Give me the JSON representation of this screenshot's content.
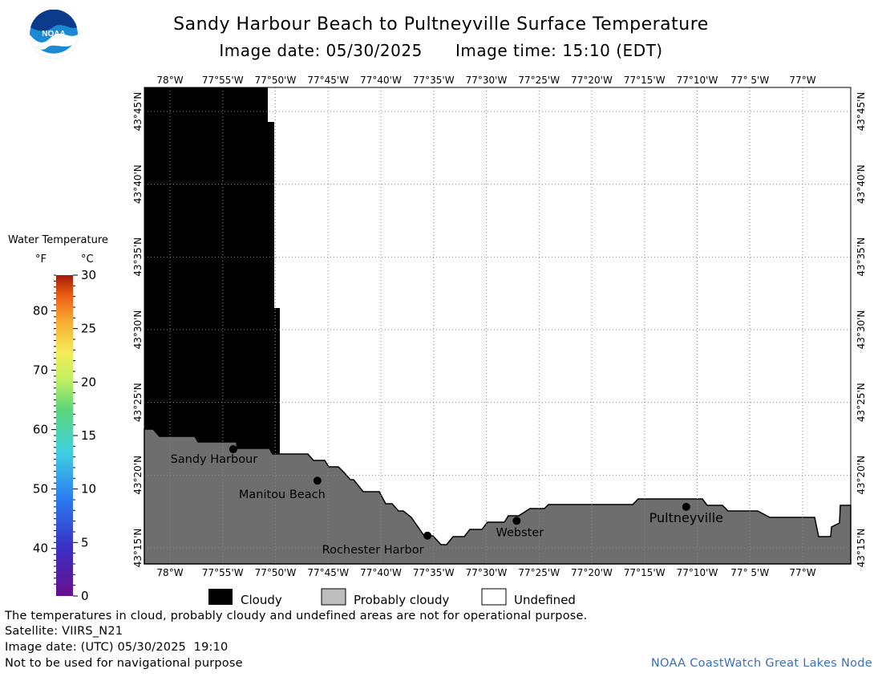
{
  "header": {
    "title": "Sandy Harbour Beach to Pultneyville Surface Temperature",
    "image_date_label": "Image date: 05/30/2025",
    "image_time_label": "Image time: 15:10 (EDT)"
  },
  "logo": {
    "text": "NOAA",
    "icon": "noaa-logo-icon",
    "colors": {
      "blue": "#1a8ad4",
      "navy": "#0b3b8a"
    }
  },
  "map": {
    "longitude_ticks": [
      "78°W",
      "77°55'W",
      "77°50'W",
      "77°45'W",
      "77°40'W",
      "77°35'W",
      "77°30'W",
      "77°25'W",
      "77°20'W",
      "77°15'W",
      "77°10'W",
      "77° 5'W",
      "77°W"
    ],
    "latitude_ticks": [
      "43°45'N",
      "43°40'N",
      "43°35'N",
      "43°30'N",
      "43°25'N",
      "43°20'N",
      "43°15'N"
    ],
    "places": [
      {
        "name": "Sandy Harbour",
        "lon": -77.9,
        "lat": 43.363
      },
      {
        "name": "Manitou Beach",
        "lon": -77.767,
        "lat": 43.327
      },
      {
        "name": "Rochester Harbor",
        "lon": -77.593,
        "lat": 43.264
      },
      {
        "name": "Webster",
        "lon": -77.452,
        "lat": 43.281
      },
      {
        "name": "Pultneyville",
        "lon": -77.184,
        "lat": 43.297
      }
    ],
    "colors": {
      "cloud": "#000000",
      "land": "#6e6e6e",
      "undefined": "#ffffff",
      "grid": "#888888"
    }
  },
  "legend": {
    "title": "Water Temperature",
    "unit_f": "°F",
    "unit_c": "°C",
    "f_labels": [
      "80",
      "70",
      "60",
      "50",
      "40"
    ],
    "c_labels": [
      "30",
      "25",
      "20",
      "15",
      "10",
      "5",
      "0"
    ]
  },
  "key": {
    "cloudy": "Cloudy",
    "probably_cloudy": "Probably cloudy",
    "undefined": "Undefined",
    "colors": {
      "cloudy": "#000000",
      "probably_cloudy": "#bdbdbd",
      "undefined": "#ffffff"
    }
  },
  "footer": {
    "line1": "The temperatures in cloud, probably cloudy and undefined areas are not for operational purpose.",
    "line2": "Satellite: VIIRS_N21",
    "line3": "Image date: (UTC) 05/30/2025  19:10",
    "line4": "Not to be used for navigational purpose",
    "credit": "NOAA CoastWatch Great Lakes Node"
  }
}
